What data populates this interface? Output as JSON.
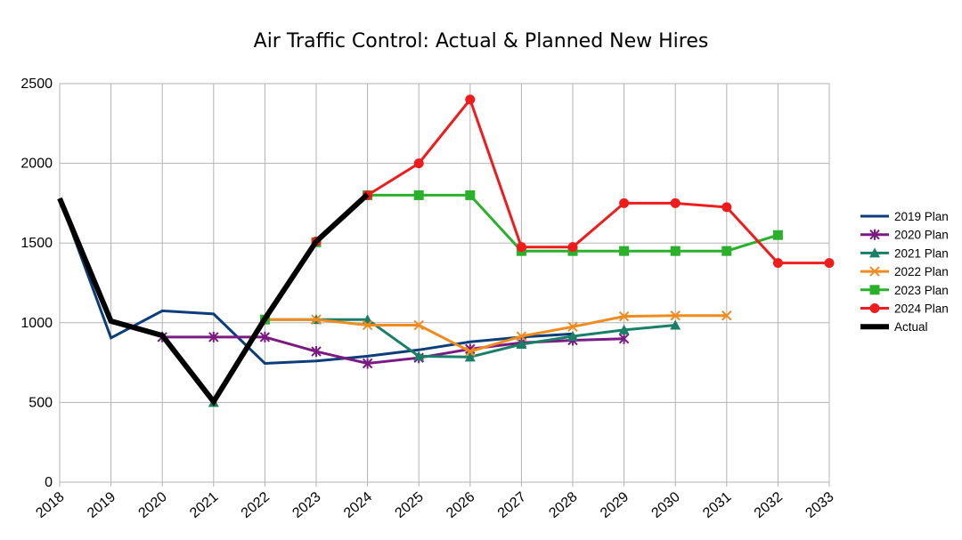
{
  "chart_data": {
    "type": "line",
    "title": "Air Traffic Control: Actual & Planned New Hires",
    "xlabel": "",
    "ylabel": "",
    "xlim": [
      2018,
      2033
    ],
    "ylim": [
      0,
      2500
    ],
    "y_ticks": [
      0,
      500,
      1000,
      1500,
      2000,
      2500
    ],
    "x_ticks": [
      2018,
      2019,
      2020,
      2021,
      2022,
      2023,
      2024,
      2025,
      2026,
      2027,
      2028,
      2029,
      2030,
      2031,
      2032,
      2033
    ],
    "grid": true,
    "legend_position": "right",
    "series": [
      {
        "name": "2019 Plan",
        "color": "#0b3d7a",
        "marker": "none",
        "width": 3,
        "x": [
          2018,
          2019,
          2020,
          2021,
          2022,
          2023,
          2024,
          2025,
          2026,
          2027,
          2028
        ],
        "y": [
          1780,
          905,
          1075,
          1055,
          745,
          760,
          790,
          830,
          880,
          910,
          930
        ]
      },
      {
        "name": "2020 Plan",
        "color": "#7b1a82",
        "marker": "star",
        "width": 3,
        "x": [
          2020,
          2021,
          2022,
          2023,
          2024,
          2025,
          2026,
          2027,
          2028,
          2029
        ],
        "y": [
          910,
          910,
          910,
          820,
          745,
          780,
          835,
          875,
          890,
          900
        ]
      },
      {
        "name": "2021 Plan",
        "color": "#1a7f67",
        "marker": "triangle",
        "width": 3,
        "x": [
          2021,
          2022,
          2023,
          2024,
          2025,
          2026,
          2027,
          2028,
          2029,
          2030
        ],
        "y": [
          500,
          1020,
          1020,
          1020,
          790,
          785,
          865,
          915,
          955,
          985
        ]
      },
      {
        "name": "2022 Plan",
        "color": "#f08c1f",
        "marker": "x",
        "width": 3,
        "x": [
          2022,
          2023,
          2024,
          2025,
          2026,
          2027,
          2028,
          2029,
          2030,
          2031
        ],
        "y": [
          1020,
          1020,
          985,
          985,
          820,
          915,
          975,
          1040,
          1045,
          1045
        ]
      },
      {
        "name": "2023 Plan",
        "color": "#2bb02b",
        "marker": "square",
        "width": 3,
        "x": [
          2022,
          2023,
          2024,
          2025,
          2026,
          2027,
          2028,
          2029,
          2030,
          2031,
          2032
        ],
        "y": [
          1020,
          1505,
          1800,
          1800,
          1800,
          1450,
          1450,
          1450,
          1450,
          1450,
          1550
        ]
      },
      {
        "name": "2024 Plan",
        "color": "#ee1c1c",
        "marker": "circle",
        "width": 3,
        "x": [
          2023,
          2024,
          2025,
          2026,
          2027,
          2028,
          2029,
          2030,
          2031,
          2032,
          2033
        ],
        "y": [
          1510,
          1800,
          2000,
          2400,
          1475,
          1475,
          1750,
          1750,
          1725,
          1375,
          1375
        ]
      },
      {
        "name": "Actual",
        "color": "#000000",
        "marker": "none",
        "width": 6,
        "x": [
          2018,
          2019,
          2020,
          2021,
          2022,
          2023,
          2024
        ],
        "y": [
          1780,
          1010,
          920,
          505,
          1025,
          1510,
          1805
        ]
      }
    ]
  }
}
